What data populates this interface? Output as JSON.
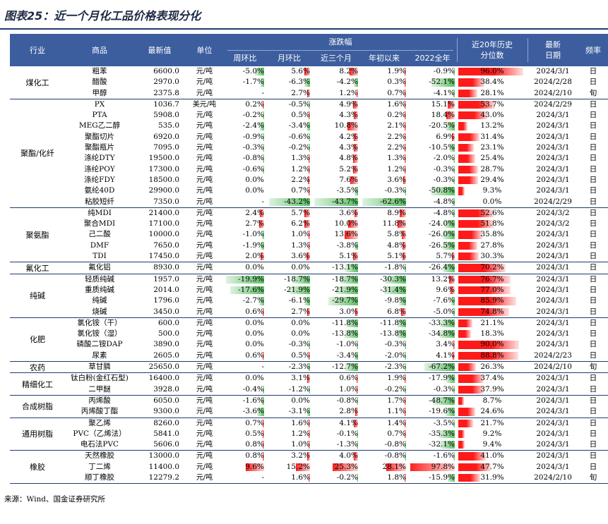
{
  "title": "图表25：近一个月化工品价格表现分化",
  "source": "来源：Wind、国金证券研究所",
  "colors": {
    "header": "#3d5e9e",
    "rule": "#1c3e6e",
    "up": "#ff1f1f",
    "down": "#5cbf63"
  },
  "header": {
    "industry": "行业",
    "product": "商品",
    "latest": "最新值",
    "unit": "单位",
    "change_group": "涨跌幅",
    "weekly": "周环比",
    "monthly": "月环比",
    "three_month": "近三个月",
    "ytd": "年初以来",
    "y2022": "2022全年",
    "percentile_1": "近20年历史",
    "percentile_2": "分位数",
    "date_1": "最新",
    "date_2": "日期",
    "frequency": "频率"
  },
  "groups": [
    {
      "name": "煤化工",
      "rows": [
        {
          "product": "粗苯",
          "latest": "6600.0",
          "unit": "元/吨",
          "w": "-5.0%",
          "m": "5.6%",
          "q": "8.2%",
          "ytd": "1.9%",
          "y22": "-0.9%",
          "pct": "96.0%",
          "date": "2024/3/1",
          "freq": "日"
        },
        {
          "product": "醋酸",
          "latest": "2970.0",
          "unit": "元/吨",
          "w": "-1.7%",
          "m": "-6.3%",
          "q": "-4.2%",
          "ytd": "0.3%",
          "y22": "-52.1%",
          "pct": "38.4%",
          "date": "2024/2/28",
          "freq": "日"
        },
        {
          "product": "甲醇",
          "latest": "2375.8",
          "unit": "元/吨",
          "w": "-",
          "m": "2.7%",
          "q": "1.2%",
          "ytd": "0.7%",
          "y22": "-4.1%",
          "pct": "28.1%",
          "date": "2024/2/10",
          "freq": "旬"
        }
      ]
    },
    {
      "name": "聚酯/化纤",
      "rows": [
        {
          "product": "PX",
          "latest": "1036.7",
          "unit": "美元/吨",
          "w": "0.2%",
          "m": "-0.5%",
          "q": "4.9%",
          "ytd": "1.6%",
          "y22": "15.1%",
          "pct": "53.7%",
          "date": "2024/2/29",
          "freq": "日"
        },
        {
          "product": "PTA",
          "latest": "5908.0",
          "unit": "元/吨",
          "w": "-0.2%",
          "m": "0.5%",
          "q": "4.3%",
          "ytd": "0.2%",
          "y22": "18.4%",
          "pct": "43.0%",
          "date": "2024/3/1",
          "freq": "日"
        },
        {
          "product": "MEG乙二醇",
          "latest": "535.0",
          "unit": "元/吨",
          "w": "-2.4%",
          "m": "-3.4%",
          "q": "10.8%",
          "ytd": "2.1%",
          "y22": "-20.5%",
          "pct": "13.2%",
          "date": "2024/3/1",
          "freq": "日"
        },
        {
          "product": "聚酯切片",
          "latest": "6920.0",
          "unit": "元/吨",
          "w": "-0.9%",
          "m": "-0.6%",
          "q": "4.2%",
          "ytd": "2.2%",
          "y22": "6.9%",
          "pct": "31.4%",
          "date": "2024/3/1",
          "freq": "日"
        },
        {
          "product": "聚酯瓶片",
          "latest": "7095.0",
          "unit": "元/吨",
          "w": "-0.3%",
          "m": "-0.2%",
          "q": "4.3%",
          "ytd": "2.2%",
          "y22": "-10.5%",
          "pct": "23.1%",
          "date": "2024/3/1",
          "freq": "日"
        },
        {
          "product": "涤纶DTY",
          "latest": "19500.0",
          "unit": "元/吨",
          "w": "-0.8%",
          "m": "1.3%",
          "q": "4.8%",
          "ytd": "1.3%",
          "y22": "-2.0%",
          "pct": "25.4%",
          "date": "2024/3/1",
          "freq": "日"
        },
        {
          "product": "涤纶POY",
          "latest": "17300.0",
          "unit": "元/吨",
          "w": "-0.6%",
          "m": "1.2%",
          "q": "5.2%",
          "ytd": "1.2%",
          "y22": "-0.3%",
          "pct": "28.7%",
          "date": "2024/3/1",
          "freq": "日"
        },
        {
          "product": "涤纶FDY",
          "latest": "18500.0",
          "unit": "元/吨",
          "w": "0.0%",
          "m": "2.2%",
          "q": "7.6%",
          "ytd": "3.6%",
          "y22": "-0.3%",
          "pct": "29.4%",
          "date": "2024/3/1",
          "freq": "日"
        },
        {
          "product": "氨纶40D",
          "latest": "29900.0",
          "unit": "元/吨",
          "w": "0.0%",
          "m": "0.7%",
          "q": "-3.5%",
          "ytd": "-0.3%",
          "y22": "-50.8%",
          "pct": "9.3%",
          "date": "2024/3/1",
          "freq": "日"
        },
        {
          "product": "粘胶短纤",
          "latest": "7350.0",
          "unit": "元/吨",
          "w": "-",
          "m": "-43.2%",
          "q": "-43.7%",
          "ytd": "-62.6%",
          "y22": "-4.8%",
          "pct": "0.0%",
          "date": "2024/2/29",
          "freq": "日"
        }
      ]
    },
    {
      "name": "聚氨酯",
      "rows": [
        {
          "product": "纯MDI",
          "latest": "21400.0",
          "unit": "元/吨",
          "w": "2.4%",
          "m": "5.7%",
          "q": "3.6%",
          "ytd": "8.9%",
          "y22": "-4.8%",
          "pct": "52.6%",
          "date": "2024/3/2",
          "freq": "日"
        },
        {
          "product": "聚合MDI",
          "latest": "17100.0",
          "unit": "元/吨",
          "w": "2.7%",
          "m": "6.2%",
          "q": "10.0%",
          "ytd": "11.8%",
          "y22": "-24.0%",
          "pct": "51.8%",
          "date": "2024/3/2",
          "freq": "日"
        },
        {
          "product": "己二酸",
          "latest": "10000.0",
          "unit": "元/吨",
          "w": "-1.0%",
          "m": "1.0%",
          "q": "13.6%",
          "ytd": "5.8%",
          "y22": "-26.0%",
          "pct": "35.8%",
          "date": "2024/3/1",
          "freq": "日"
        },
        {
          "product": "DMF",
          "latest": "7650.0",
          "unit": "元/吨",
          "w": "-1.9%",
          "m": "1.3%",
          "q": "-3.8%",
          "ytd": "4.8%",
          "y22": "-26.5%",
          "pct": "27.8%",
          "date": "2024/3/1",
          "freq": "日"
        },
        {
          "product": "TDI",
          "latest": "17450.0",
          "unit": "元/吨",
          "w": "2.0%",
          "m": "3.6%",
          "q": "5.1%",
          "ytd": "5.1%",
          "y22": "5.7%",
          "pct": "30.3%",
          "date": "2024/3/1",
          "freq": "日"
        }
      ]
    },
    {
      "name": "氟化工",
      "rows": [
        {
          "product": "氟化铝",
          "latest": "8930.0",
          "unit": "元/吨",
          "w": "0.0%",
          "m": "0.0%",
          "q": "-13.1%",
          "ytd": "-1.8%",
          "y22": "-26.4%",
          "pct": "70.2%",
          "date": "2024/3/1",
          "freq": "日"
        }
      ]
    },
    {
      "name": "纯碱",
      "rows": [
        {
          "product": "轻质纯碱",
          "latest": "1957.0",
          "unit": "元/吨",
          "w": "-19.9%",
          "m": "-18.7%",
          "q": "-18.7%",
          "ytd": "-30.3%",
          "y22": "13.2%",
          "pct": "76.7%",
          "date": "2024/3/1",
          "freq": "日"
        },
        {
          "product": "重质纯碱",
          "latest": "2014.0",
          "unit": "元/吨",
          "w": "-17.6%",
          "m": "-21.9%",
          "q": "-21.9%",
          "ytd": "-31.4%",
          "y22": "9.6%",
          "pct": "77.0%",
          "date": "2024/3/1",
          "freq": "日"
        },
        {
          "product": "纯碱",
          "latest": "1796.0",
          "unit": "元/吨",
          "w": "-2.7%",
          "m": "-6.1%",
          "q": "-29.7%",
          "ytd": "-9.8%",
          "y22": "-7.6%",
          "pct": "85.9%",
          "date": "2024/3/1",
          "freq": "日"
        },
        {
          "product": "烧碱",
          "latest": "3450.0",
          "unit": "元/吨",
          "w": "0.6%",
          "m": "2.7%",
          "q": "3.0%",
          "ytd": "6.8%",
          "y22": "-5.0%",
          "pct": "74.8%",
          "date": "2024/3/1",
          "freq": "日"
        }
      ]
    },
    {
      "name": "化肥",
      "rows": [
        {
          "product": "氯化铵（干）",
          "latest": "600.0",
          "unit": "元/吨",
          "w": "0.0%",
          "m": "0.0%",
          "q": "-11.8%",
          "ytd": "-11.8%",
          "y22": "-33.3%",
          "pct": "21.1%",
          "date": "2024/3/1",
          "freq": "日"
        },
        {
          "product": "氯化铵（湿）",
          "latest": "500.0",
          "unit": "元/吨",
          "w": "0.0%",
          "m": "0.0%",
          "q": "-13.8%",
          "ytd": "-13.8%",
          "y22": "-34.8%",
          "pct": "18.3%",
          "date": "2024/3/1",
          "freq": "日"
        },
        {
          "product": "磷酸二铵DAP",
          "latest": "3890.0",
          "unit": "元/吨",
          "w": "0.0%",
          "m": "-0.3%",
          "q": "-1.0%",
          "ytd": "-0.3%",
          "y22": "3.4%",
          "pct": "90.0%",
          "date": "2024/3/1",
          "freq": "日"
        },
        {
          "product": "尿素",
          "latest": "2605.0",
          "unit": "元/吨",
          "w": "0.6%",
          "m": "0.5%",
          "q": "-3.4%",
          "ytd": "-2.0%",
          "y22": "4.1%",
          "pct": "88.8%",
          "date": "2024/2/23",
          "freq": "日"
        }
      ]
    },
    {
      "name": "农药",
      "rows": [
        {
          "product": "草甘膦",
          "latest": "25650.0",
          "unit": "元/吨",
          "w": "-",
          "m": "-2.3%",
          "q": "-12.7%",
          "ytd": "-2.3%",
          "y22": "-67.2%",
          "pct": "26.3%",
          "date": "2024/2/10",
          "freq": "旬"
        }
      ]
    },
    {
      "name": "精细化工",
      "rows": [
        {
          "product": "钛白粉(金红石型)",
          "latest": "16400.0",
          "unit": "元/吨",
          "w": "0.0%",
          "m": "3.1%",
          "q": "0.6%",
          "ytd": "1.9%",
          "y22": "-17.9%",
          "pct": "37.4%",
          "date": "2024/3/1",
          "freq": "日"
        },
        {
          "product": "二甲醚",
          "latest": "3928.0",
          "unit": "元/吨",
          "w": "-0.4%",
          "m": "-1.2%",
          "q": "1.0%",
          "ytd": "-0.2%",
          "y22": "-0.3%",
          "pct": "37.9%",
          "date": "2024/3/1",
          "freq": "日"
        }
      ]
    },
    {
      "name": "合成树脂",
      "rows": [
        {
          "product": "丙烯酸",
          "latest": "6050.0",
          "unit": "元/吨",
          "w": "-1.6%",
          "m": "0.0%",
          "q": "-0.8%",
          "ytd": "1.7%",
          "y22": "-48.7%",
          "pct": "8.7%",
          "date": "2024/3/1",
          "freq": "日"
        },
        {
          "product": "丙烯酸丁酯",
          "latest": "9300.0",
          "unit": "元/吨",
          "w": "-3.6%",
          "m": "-3.1%",
          "q": "2.8%",
          "ytd": "1.1%",
          "y22": "-19.6%",
          "pct": "24.6%",
          "date": "2024/3/1",
          "freq": "日"
        }
      ]
    },
    {
      "name": "通用树脂",
      "rows": [
        {
          "product": "聚乙烯",
          "latest": "8260.0",
          "unit": "元/吨",
          "w": "0.7%",
          "m": "1.6%",
          "q": "4.1%",
          "ytd": "1.4%",
          "y22": "-3.5%",
          "pct": "21.7%",
          "date": "2024/3/1",
          "freq": "日"
        },
        {
          "product": "PVC（乙烯法）",
          "latest": "5841.0",
          "unit": "元/吨",
          "w": "0.5%",
          "m": "1.2%",
          "q": "-0.1%",
          "ytd": "0.7%",
          "y22": "-35.3%",
          "pct": "9.2%",
          "date": "2024/3/1",
          "freq": "日"
        },
        {
          "product": "电石法PVC",
          "latest": "5606.0",
          "unit": "元/吨",
          "w": "0.8%",
          "m": "1.0%",
          "q": "-1.3%",
          "ytd": "-0.8%",
          "y22": "-32.1%",
          "pct": "9.4%",
          "date": "2024/3/1",
          "freq": "日"
        }
      ]
    },
    {
      "name": "橡胶",
      "rows": [
        {
          "product": "天然橡胶",
          "latest": "13000.0",
          "unit": "元/吨",
          "w": "0.8%",
          "m": "3.2%",
          "q": "4.0%",
          "ytd": "-0.8%",
          "y22": "-1.6%",
          "pct": "41.0%",
          "date": "2024/3/1",
          "freq": "日"
        },
        {
          "product": "丁二烯",
          "latest": "11400.0",
          "unit": "元/吨",
          "w": "9.6%",
          "m": "15.2%",
          "q": "25.3%",
          "ytd": "28.1%",
          "y22": "97.8%",
          "pct": "47.7%",
          "date": "2024/3/1",
          "freq": "日"
        },
        {
          "product": "顺丁橡胶",
          "latest": "12279.2",
          "unit": "元/吨",
          "w": "-",
          "m": "1.6%",
          "q": "-0.2%",
          "ytd": "1.8%",
          "y22": "-15.9%",
          "pct": "31.9%",
          "date": "2024/2/10",
          "freq": "旬"
        }
      ]
    }
  ]
}
